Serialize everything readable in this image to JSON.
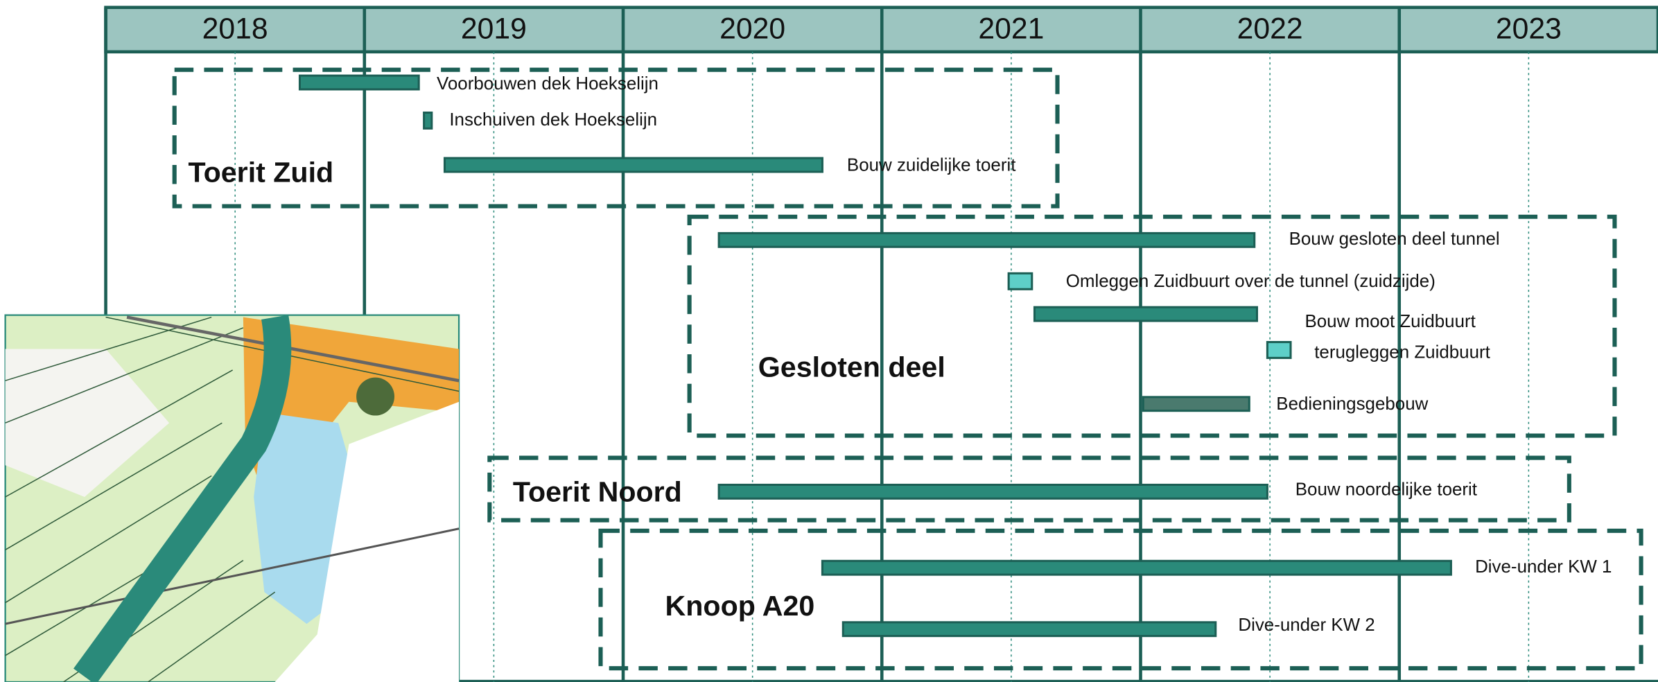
{
  "chart_data": {
    "type": "gantt",
    "xlim": [
      2018,
      2024
    ],
    "years": [
      2018,
      2019,
      2020,
      2021,
      2022,
      2023
    ],
    "xticks": [
      2019,
      2020,
      2021,
      2022,
      2023
    ],
    "grid": true,
    "groups": [
      {
        "name": "Toerit Zuid",
        "tasks": [
          {
            "name": "Voorbouwen dek Hoekselijn",
            "start": 2018.75,
            "end": 2019.21,
            "color": "#2a8a7a"
          },
          {
            "name": "Inschuiven dek Hoekselijn",
            "start": 2019.23,
            "end": 2019.26,
            "color": "#2a8a7a"
          },
          {
            "name": "Bouw zuidelijke toerit",
            "start": 2019.31,
            "end": 2020.77,
            "color": "#2a8a7a"
          }
        ]
      },
      {
        "name": "Gesloten deel",
        "tasks": [
          {
            "name": "Bouw gesloten deel tunnel",
            "start": 2020.37,
            "end": 2022.44,
            "color": "#2a8a7a"
          },
          {
            "name": "Omleggen Zuidbuurt over de tunnel (zuidzijde)",
            "start": 2021.49,
            "end": 2021.58,
            "color": "#5ecfc8"
          },
          {
            "name": "Bouw moot Zuidbuurt",
            "start": 2021.59,
            "end": 2022.45,
            "color": "#2a8a7a"
          },
          {
            "name": "terugleggen Zuidbuurt",
            "start": 2022.49,
            "end": 2022.58,
            "color": "#5ecfc8"
          },
          {
            "name": "Bedieningsgebouw",
            "start": 2022.01,
            "end": 2022.42,
            "color": "#4a7a6e"
          }
        ]
      },
      {
        "name": "Toerit Noord",
        "tasks": [
          {
            "name": "Bouw noordelijke toerit",
            "start": 2020.37,
            "end": 2022.49,
            "color": "#2a8a7a"
          }
        ]
      },
      {
        "name": "Knoop A20",
        "tasks": [
          {
            "name": "Dive-under KW 1",
            "start": 2020.77,
            "end": 2023.2,
            "color": "#2a8a7a"
          },
          {
            "name": "Dive-under KW 2",
            "start": 2020.85,
            "end": 2022.29,
            "color": "#2a8a7a"
          }
        ]
      }
    ]
  }
}
